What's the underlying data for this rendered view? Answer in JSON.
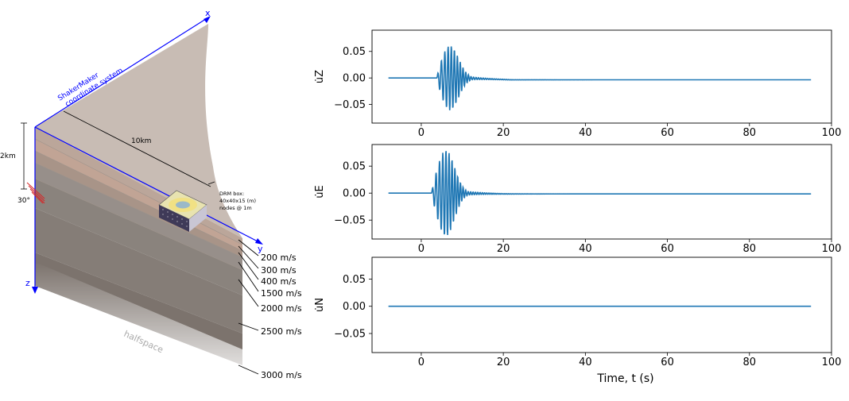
{
  "model": {
    "axis_x": "x",
    "axis_y": "y",
    "axis_z": "z",
    "coord_label_1": "ShakerMaker",
    "coord_label_2": "coordinate system",
    "distance_label": "10km",
    "depth_label": "2km",
    "dip_label": "30°",
    "drm_line1": "DRM box:",
    "drm_line2": "40x40x15 (m)",
    "drm_line3": "nodes @ 1m",
    "halfspace_label": "halfspace",
    "layers": [
      "200 m/s",
      "300 m/s",
      "400 m/s",
      "1500 m/s",
      "2000 m/s",
      "2500 m/s",
      "3000 m/s"
    ],
    "colors": {
      "axis": "#0000ff",
      "fault": "#d62728",
      "halfspace_text": "#aaaaaa"
    }
  },
  "chart_data": [
    {
      "type": "line",
      "ylabel": "u̇Z",
      "xlabel": "",
      "xlim": [
        -12,
        100
      ],
      "ylim": [
        -0.085,
        0.09
      ],
      "xticks": [
        0,
        20,
        40,
        60,
        80,
        100
      ],
      "yticks": [
        0.05,
        0.0,
        -0.05
      ],
      "ytick_labels": [
        "0.05",
        "0.00",
        "−0.05"
      ],
      "color": "#1f77b4",
      "signal": {
        "t_start": -8,
        "t_end": 95,
        "onset": 3.8,
        "peak_time": 7.0,
        "peak": 0.057,
        "trough": -0.065,
        "tail_offset": -0.0035
      }
    },
    {
      "type": "line",
      "ylabel": "u̇E",
      "xlabel": "",
      "xlim": [
        -12,
        100
      ],
      "ylim": [
        -0.085,
        0.09
      ],
      "xticks": [
        0,
        20,
        40,
        60,
        80,
        100
      ],
      "yticks": [
        0.05,
        0.0,
        -0.05
      ],
      "ytick_labels": [
        "0.05",
        "0.00",
        "−0.05"
      ],
      "color": "#1f77b4",
      "signal": {
        "t_start": -8,
        "t_end": 95,
        "onset": 2.5,
        "peak_time": 6.0,
        "peak": 0.085,
        "trough": -0.075,
        "tail_offset": -0.0015
      }
    },
    {
      "type": "line",
      "ylabel": "u̇N",
      "xlabel": "Time, t (s)",
      "xlim": [
        -12,
        100
      ],
      "ylim": [
        -0.085,
        0.09
      ],
      "xticks": [
        0,
        20,
        40,
        60,
        80,
        100
      ],
      "yticks": [
        0.05,
        0.0,
        -0.05
      ],
      "ytick_labels": [
        "0.05",
        "0.00",
        "−0.05"
      ],
      "color": "#1f77b4",
      "signal": {
        "t_start": -8,
        "t_end": 95,
        "onset": 0,
        "peak_time": 0,
        "peak": 0,
        "trough": 0,
        "tail_offset": 0
      }
    }
  ]
}
